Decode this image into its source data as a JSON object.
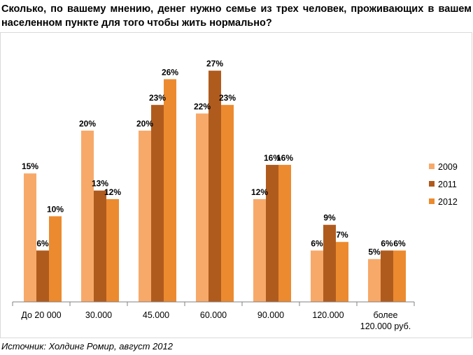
{
  "title": "Сколько, по вашему мнению, денег нужно семье из трех человек, проживающих в вашем населенном пункте для того чтобы жить нормально?",
  "source": "Источник: Холдинг Ромир, август 2012",
  "colors": {
    "2009": "#F7A96A",
    "2011": "#B05B1E",
    "2012": "#EC8A2F"
  },
  "chart_data": {
    "type": "bar",
    "title": "Сколько, по вашему мнению, денег нужно семье из трех человек, проживающих в вашем населенном пункте для того чтобы жить нормально?",
    "categories": [
      "До 20 000",
      "30.000",
      "45.000",
      "60.000",
      "90.000",
      "120.000",
      [
        "более",
        "120.000 руб."
      ]
    ],
    "series": [
      {
        "name": "2009",
        "values": [
          15,
          20,
          20,
          22,
          12,
          6,
          5
        ],
        "labels": [
          "15%",
          "20%",
          "20%",
          "22%",
          "12%",
          "6%",
          "5%"
        ]
      },
      {
        "name": "2011",
        "values": [
          6,
          13,
          23,
          27,
          16,
          9,
          6
        ],
        "labels": [
          "6%",
          "13%",
          "23%",
          "27%",
          "16%",
          "9%",
          "6%"
        ]
      },
      {
        "name": "2012",
        "values": [
          10,
          12,
          26,
          23,
          16,
          7,
          6
        ],
        "labels": [
          "10%",
          "12%",
          "26%",
          "23%",
          "16%",
          "7%",
          "6%"
        ]
      }
    ],
    "ylim": [
      0,
      27.5
    ],
    "grid": false,
    "legend": "right"
  }
}
